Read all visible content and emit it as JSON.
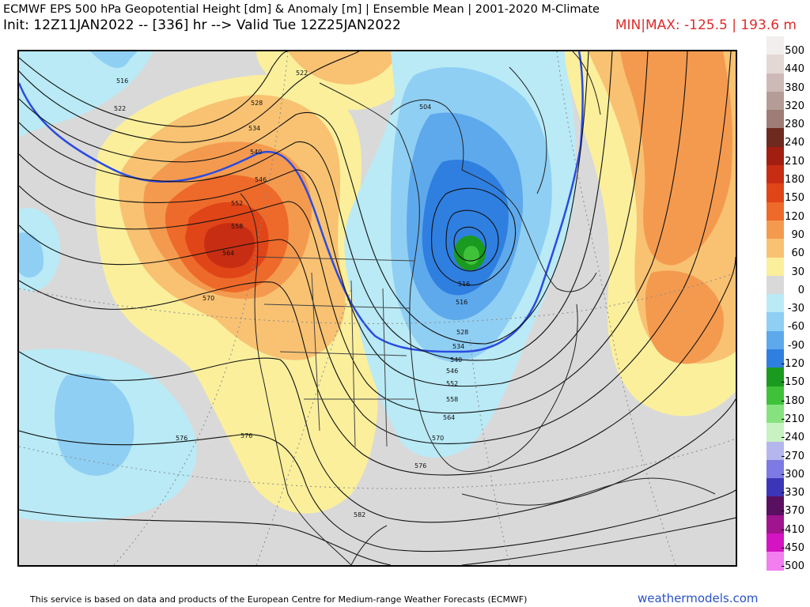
{
  "header": {
    "title": "ECMWF EPS 500 hPa Geopotential Height [dm] & Anomaly [m] | Ensemble Mean | 2001-2020 M-Climate",
    "init_line": "Init: 12Z11JAN2022 -- [336] hr --> Valid Tue 12Z25JAN2022",
    "minmax": "MIN|MAX: -125.5 | 193.6 m"
  },
  "map": {
    "contour_labels": [
      "516",
      "522",
      "522",
      "528",
      "534",
      "540",
      "546",
      "552",
      "558",
      "564",
      "570",
      "576",
      "576",
      "576",
      "582",
      "504",
      "516",
      "516",
      "528",
      "534",
      "540",
      "546",
      "552",
      "558",
      "564",
      "570"
    ],
    "colors": {
      "background_neutral": "#d9d9d9",
      "positive_anomaly": "#e8502a",
      "negative_anomaly": "#2f7fe0",
      "zero_anomaly_line": "#2b4be0",
      "strong_negative": "#1faa22"
    }
  },
  "legend": {
    "items": [
      {
        "label": "500",
        "color": "#f3eeee"
      },
      {
        "label": "440",
        "color": "#e4d8d5"
      },
      {
        "label": "380",
        "color": "#cdbab6"
      },
      {
        "label": "320",
        "color": "#b69c96"
      },
      {
        "label": "280",
        "color": "#9e7d76"
      },
      {
        "label": "240",
        "color": "#6e2a1f"
      },
      {
        "label": "210",
        "color": "#a21e10"
      },
      {
        "label": "180",
        "color": "#c72d13"
      },
      {
        "label": "150",
        "color": "#e04518"
      },
      {
        "label": "120",
        "color": "#ee6a2a"
      },
      {
        "label": "90",
        "color": "#f49a4f"
      },
      {
        "label": "60",
        "color": "#f8c272"
      },
      {
        "label": "30",
        "color": "#fbef9c"
      },
      {
        "label": "0",
        "color": "#d9d9d9"
      },
      {
        "label": "-30",
        "color": "#b9eaf6"
      },
      {
        "label": "-60",
        "color": "#8fcff3"
      },
      {
        "label": "-90",
        "color": "#5ea9ec"
      },
      {
        "label": "-120",
        "color": "#2f7fe0"
      },
      {
        "label": "-150",
        "color": "#1a9a1f"
      },
      {
        "label": "-180",
        "color": "#3fc23a"
      },
      {
        "label": "-210",
        "color": "#86e27e"
      },
      {
        "label": "-240",
        "color": "#c8f2c2"
      },
      {
        "label": "-270",
        "color": "#b6b6ee"
      },
      {
        "label": "-300",
        "color": "#7d7be3"
      },
      {
        "label": "-330",
        "color": "#3b36b8"
      },
      {
        "label": "-370",
        "color": "#5a1060"
      },
      {
        "label": "-410",
        "color": "#a0148f"
      },
      {
        "label": "-450",
        "color": "#d414c2"
      },
      {
        "label": "-500",
        "color": "#f27ef0"
      }
    ]
  },
  "footer": {
    "note": "This service is based on data and products of the European Centre for Medium-range Weather Forecasts (ECMWF)",
    "brand": "weathermodels.com"
  }
}
